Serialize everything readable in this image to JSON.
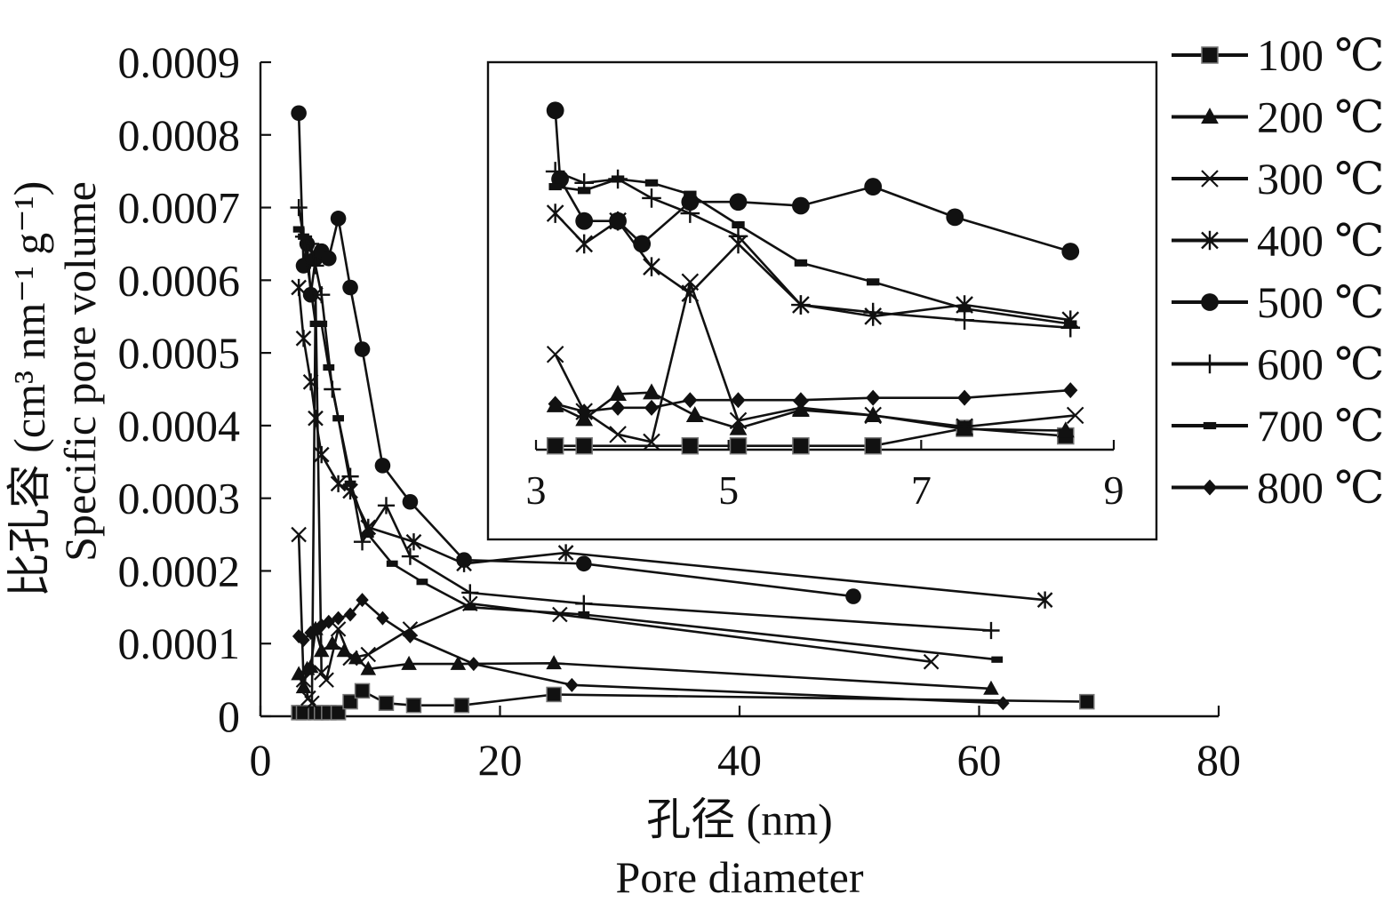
{
  "chart_data": [
    {
      "type": "line",
      "ylabel": "比孔容 (cm³ nm⁻¹ g⁻¹)",
      "ylabel_en": "Specific pore volume",
      "xlabel": "孔径 (nm)",
      "xlabel_en": "Pore diameter",
      "xlim": [
        0,
        80
      ],
      "ylim": [
        0,
        0.0009
      ],
      "x_ticks": [
        "0",
        "20",
        "40",
        "60",
        "80"
      ],
      "y_ticks": [
        "0",
        "0.0001",
        "0.0002",
        "0.0003",
        "0.0004",
        "0.0005",
        "0.0006",
        "0.0007",
        "0.0008",
        "0.0009"
      ],
      "grid": false,
      "legend_position": "right",
      "series": [
        {
          "name": "100 ℃",
          "marker": "square",
          "points": [
            [
              3.2,
              5e-06
            ],
            [
              3.6,
              5e-06
            ],
            [
              4.6,
              5e-06
            ],
            [
              5.1,
              5e-06
            ],
            [
              5.7,
              5e-06
            ],
            [
              6.5,
              5e-06
            ],
            [
              7.5,
              2e-05
            ],
            [
              8.5,
              3.5e-05
            ],
            [
              10.5,
              1.8e-05
            ],
            [
              12.8,
              1.5e-05
            ],
            [
              16.8,
              1.5e-05
            ],
            [
              24.5,
              3e-05
            ],
            [
              69,
              2e-05
            ]
          ]
        },
        {
          "name": "200 ℃",
          "marker": "triangle",
          "points": [
            [
              3.2,
              5.8e-05
            ],
            [
              3.6,
              4e-05
            ],
            [
              3.9,
              6.5e-05
            ],
            [
              4.2,
              6.8e-05
            ],
            [
              4.6,
              0.00012
            ],
            [
              5.1,
              9e-05
            ],
            [
              6,
              0.0001
            ],
            [
              7,
              9e-05
            ],
            [
              8,
              8e-05
            ],
            [
              9,
              6.5e-05
            ],
            [
              12.4,
              7.2e-05
            ],
            [
              16.5,
              7.2e-05
            ],
            [
              24.5,
              7.3e-05
            ],
            [
              61,
              3.8e-05
            ]
          ]
        },
        {
          "name": "300 ℃",
          "marker": "x",
          "points": [
            [
              3.2,
              0.00025
            ],
            [
              3.6,
              5e-05
            ],
            [
              4,
              2.5e-05
            ],
            [
              4.3,
              1.8e-05
            ],
            [
              4.6,
              0.00058
            ],
            [
              5.1,
              6e-05
            ],
            [
              5.5,
              5e-05
            ],
            [
              6.5,
              0.00012
            ],
            [
              7.5,
              8e-05
            ],
            [
              9,
              8.5e-05
            ],
            [
              12.5,
              0.00012
            ],
            [
              17.5,
              0.000155
            ],
            [
              25,
              0.00014
            ],
            [
              56,
              7.5e-05
            ]
          ]
        },
        {
          "name": "400 ℃",
          "marker": "asterisk",
          "points": [
            [
              3.2,
              0.00059
            ],
            [
              3.6,
              0.00052
            ],
            [
              4.2,
              0.00046
            ],
            [
              4.6,
              0.00041
            ],
            [
              5.1,
              0.00036
            ],
            [
              6.5,
              0.00032
            ],
            [
              7.5,
              0.00031
            ],
            [
              9,
              0.00026
            ],
            [
              12.8,
              0.00024
            ],
            [
              17,
              0.00021
            ],
            [
              25.5,
              0.000225
            ],
            [
              65.5,
              0.00016
            ]
          ]
        },
        {
          "name": "500 ℃",
          "marker": "circle",
          "points": [
            [
              3.2,
              0.00083
            ],
            [
              3.6,
              0.00062
            ],
            [
              3.9,
              0.00065
            ],
            [
              4.2,
              0.00058
            ],
            [
              4.6,
              0.00063
            ],
            [
              5.1,
              0.00064
            ],
            [
              5.7,
              0.00063
            ],
            [
              6.5,
              0.000685
            ],
            [
              7.5,
              0.00059
            ],
            [
              8.5,
              0.000505
            ],
            [
              10.2,
              0.000345
            ],
            [
              12.5,
              0.000295
            ],
            [
              17,
              0.000215
            ],
            [
              27,
              0.00021
            ],
            [
              49.5,
              0.000165
            ]
          ]
        },
        {
          "name": "600 ℃",
          "marker": "plus",
          "points": [
            [
              3.2,
              0.0007
            ],
            [
              3.6,
              0.00066
            ],
            [
              4.2,
              0.00065
            ],
            [
              4.6,
              0.00062
            ],
            [
              5.1,
              0.00058
            ],
            [
              6,
              0.00045
            ],
            [
              7.5,
              0.00033
            ],
            [
              8.5,
              0.00024
            ],
            [
              10.5,
              0.00029
            ],
            [
              12.5,
              0.00022
            ],
            [
              17.5,
              0.00017
            ],
            [
              27,
              0.000155
            ],
            [
              61,
              0.000118
            ]
          ]
        },
        {
          "name": "700 ℃",
          "marker": "dash",
          "points": [
            [
              3.2,
              0.00067
            ],
            [
              3.6,
              0.00066
            ],
            [
              4.6,
              0.00054
            ],
            [
              5.1,
              0.00054
            ],
            [
              5.7,
              0.00048
            ],
            [
              6.5,
              0.00041
            ],
            [
              7.5,
              0.00032
            ],
            [
              9,
              0.00025
            ],
            [
              11,
              0.00021
            ],
            [
              13.5,
              0.000185
            ],
            [
              17.5,
              0.00015
            ],
            [
              27,
              0.00014
            ],
            [
              61.5,
              7.8e-05
            ]
          ]
        },
        {
          "name": "800 ℃",
          "marker": "diamond",
          "points": [
            [
              3.2,
              0.00011
            ],
            [
              3.6,
              0.000105
            ],
            [
              4.2,
              0.000115
            ],
            [
              4.6,
              0.00012
            ],
            [
              5.1,
              0.000125
            ],
            [
              5.7,
              0.00013
            ],
            [
              6.5,
              0.000135
            ],
            [
              7.5,
              0.00014
            ],
            [
              8.5,
              0.00016
            ],
            [
              10.2,
              0.000135
            ],
            [
              12.5,
              0.00011
            ],
            [
              17.8,
              7.2e-05
            ],
            [
              26,
              4.3e-05
            ],
            [
              62,
              1.8e-05
            ]
          ]
        }
      ]
    },
    {
      "type": "line",
      "inset": true,
      "xlim": [
        3,
        9
      ],
      "x_ticks": [
        "3",
        "5",
        "7",
        "9"
      ],
      "series": [
        {
          "name": "100 ℃",
          "marker": "square",
          "points": [
            [
              3.2,
              5e-06
            ],
            [
              3.5,
              5e-06
            ],
            [
              4.6,
              5e-06
            ],
            [
              5.1,
              5e-06
            ],
            [
              5.75,
              5e-06
            ],
            [
              6.5,
              5e-06
            ],
            [
              7.45,
              2.8e-05
            ],
            [
              8.5,
              1.8e-05
            ]
          ]
        },
        {
          "name": "200 ℃",
          "marker": "triangle",
          "points": [
            [
              3.2,
              5.8e-05
            ],
            [
              3.5,
              4e-05
            ],
            [
              3.85,
              7.3e-05
            ],
            [
              4.2,
              7.5e-05
            ],
            [
              4.65,
              4.5e-05
            ],
            [
              5.1,
              2.8e-05
            ],
            [
              5.75,
              5.2e-05
            ],
            [
              6.5,
              4.5e-05
            ],
            [
              7.45,
              2.7e-05
            ],
            [
              8.5,
              2.5e-05
            ]
          ]
        },
        {
          "name": "300 ℃",
          "marker": "x",
          "points": [
            [
              3.2,
              0.000125
            ],
            [
              3.5,
              5e-05
            ],
            [
              3.85,
              2e-05
            ],
            [
              4.2,
              1e-05
            ],
            [
              4.6,
              0.00022
            ],
            [
              5.1,
              3.8e-05
            ],
            [
              5.75,
              5.5e-05
            ],
            [
              6.5,
              4.5e-05
            ],
            [
              7.45,
              3e-05
            ],
            [
              8.6,
              4.5e-05
            ]
          ]
        },
        {
          "name": "400 ℃",
          "marker": "asterisk",
          "points": [
            [
              3.2,
              0.00031
            ],
            [
              3.5,
              0.00027
            ],
            [
              3.85,
              0.0003
            ],
            [
              4.2,
              0.00024
            ],
            [
              4.6,
              0.000205
            ],
            [
              5.1,
              0.00027
            ],
            [
              5.75,
              0.00019
            ],
            [
              6.5,
              0.000175
            ],
            [
              7.45,
              0.00019
            ],
            [
              8.55,
              0.00017
            ]
          ]
        },
        {
          "name": "500 ℃",
          "marker": "circle",
          "points": [
            [
              3.2,
              0.000445
            ],
            [
              3.25,
              0.000355
            ],
            [
              3.5,
              0.0003
            ],
            [
              3.85,
              0.0003
            ],
            [
              4.1,
              0.00027
            ],
            [
              4.6,
              0.000325
            ],
            [
              5.1,
              0.000325
            ],
            [
              5.75,
              0.00032
            ],
            [
              6.5,
              0.000345
            ],
            [
              7.35,
              0.000305
            ],
            [
              8.55,
              0.00026
            ]
          ]
        },
        {
          "name": "600 ℃",
          "marker": "plus",
          "points": [
            [
              3.2,
              0.000365
            ],
            [
              3.5,
              0.00035
            ],
            [
              3.85,
              0.000355
            ],
            [
              4.2,
              0.00033
            ],
            [
              4.6,
              0.00031
            ],
            [
              5.1,
              0.00028
            ],
            [
              5.75,
              0.00019
            ],
            [
              6.5,
              0.00018
            ],
            [
              7.45,
              0.00017
            ],
            [
              8.55,
              0.00016
            ]
          ]
        },
        {
          "name": "700 ℃",
          "marker": "dash",
          "points": [
            [
              3.2,
              0.000345
            ],
            [
              3.5,
              0.00034
            ],
            [
              3.85,
              0.000355
            ],
            [
              4.2,
              0.00035
            ],
            [
              4.6,
              0.000335
            ],
            [
              5.1,
              0.000295
            ],
            [
              5.75,
              0.000245
            ],
            [
              6.5,
              0.00022
            ],
            [
              7.45,
              0.000185
            ],
            [
              8.55,
              0.000165
            ]
          ]
        },
        {
          "name": "800 ℃",
          "marker": "diamond",
          "points": [
            [
              3.2,
              6e-05
            ],
            [
              3.5,
              5e-05
            ],
            [
              3.85,
              5.5e-05
            ],
            [
              4.2,
              5.5e-05
            ],
            [
              4.6,
              6.5e-05
            ],
            [
              5.1,
              6.5e-05
            ],
            [
              5.75,
              6.5e-05
            ],
            [
              6.5,
              6.8e-05
            ],
            [
              7.45,
              6.8e-05
            ],
            [
              8.55,
              7.8e-05
            ]
          ]
        }
      ]
    }
  ]
}
